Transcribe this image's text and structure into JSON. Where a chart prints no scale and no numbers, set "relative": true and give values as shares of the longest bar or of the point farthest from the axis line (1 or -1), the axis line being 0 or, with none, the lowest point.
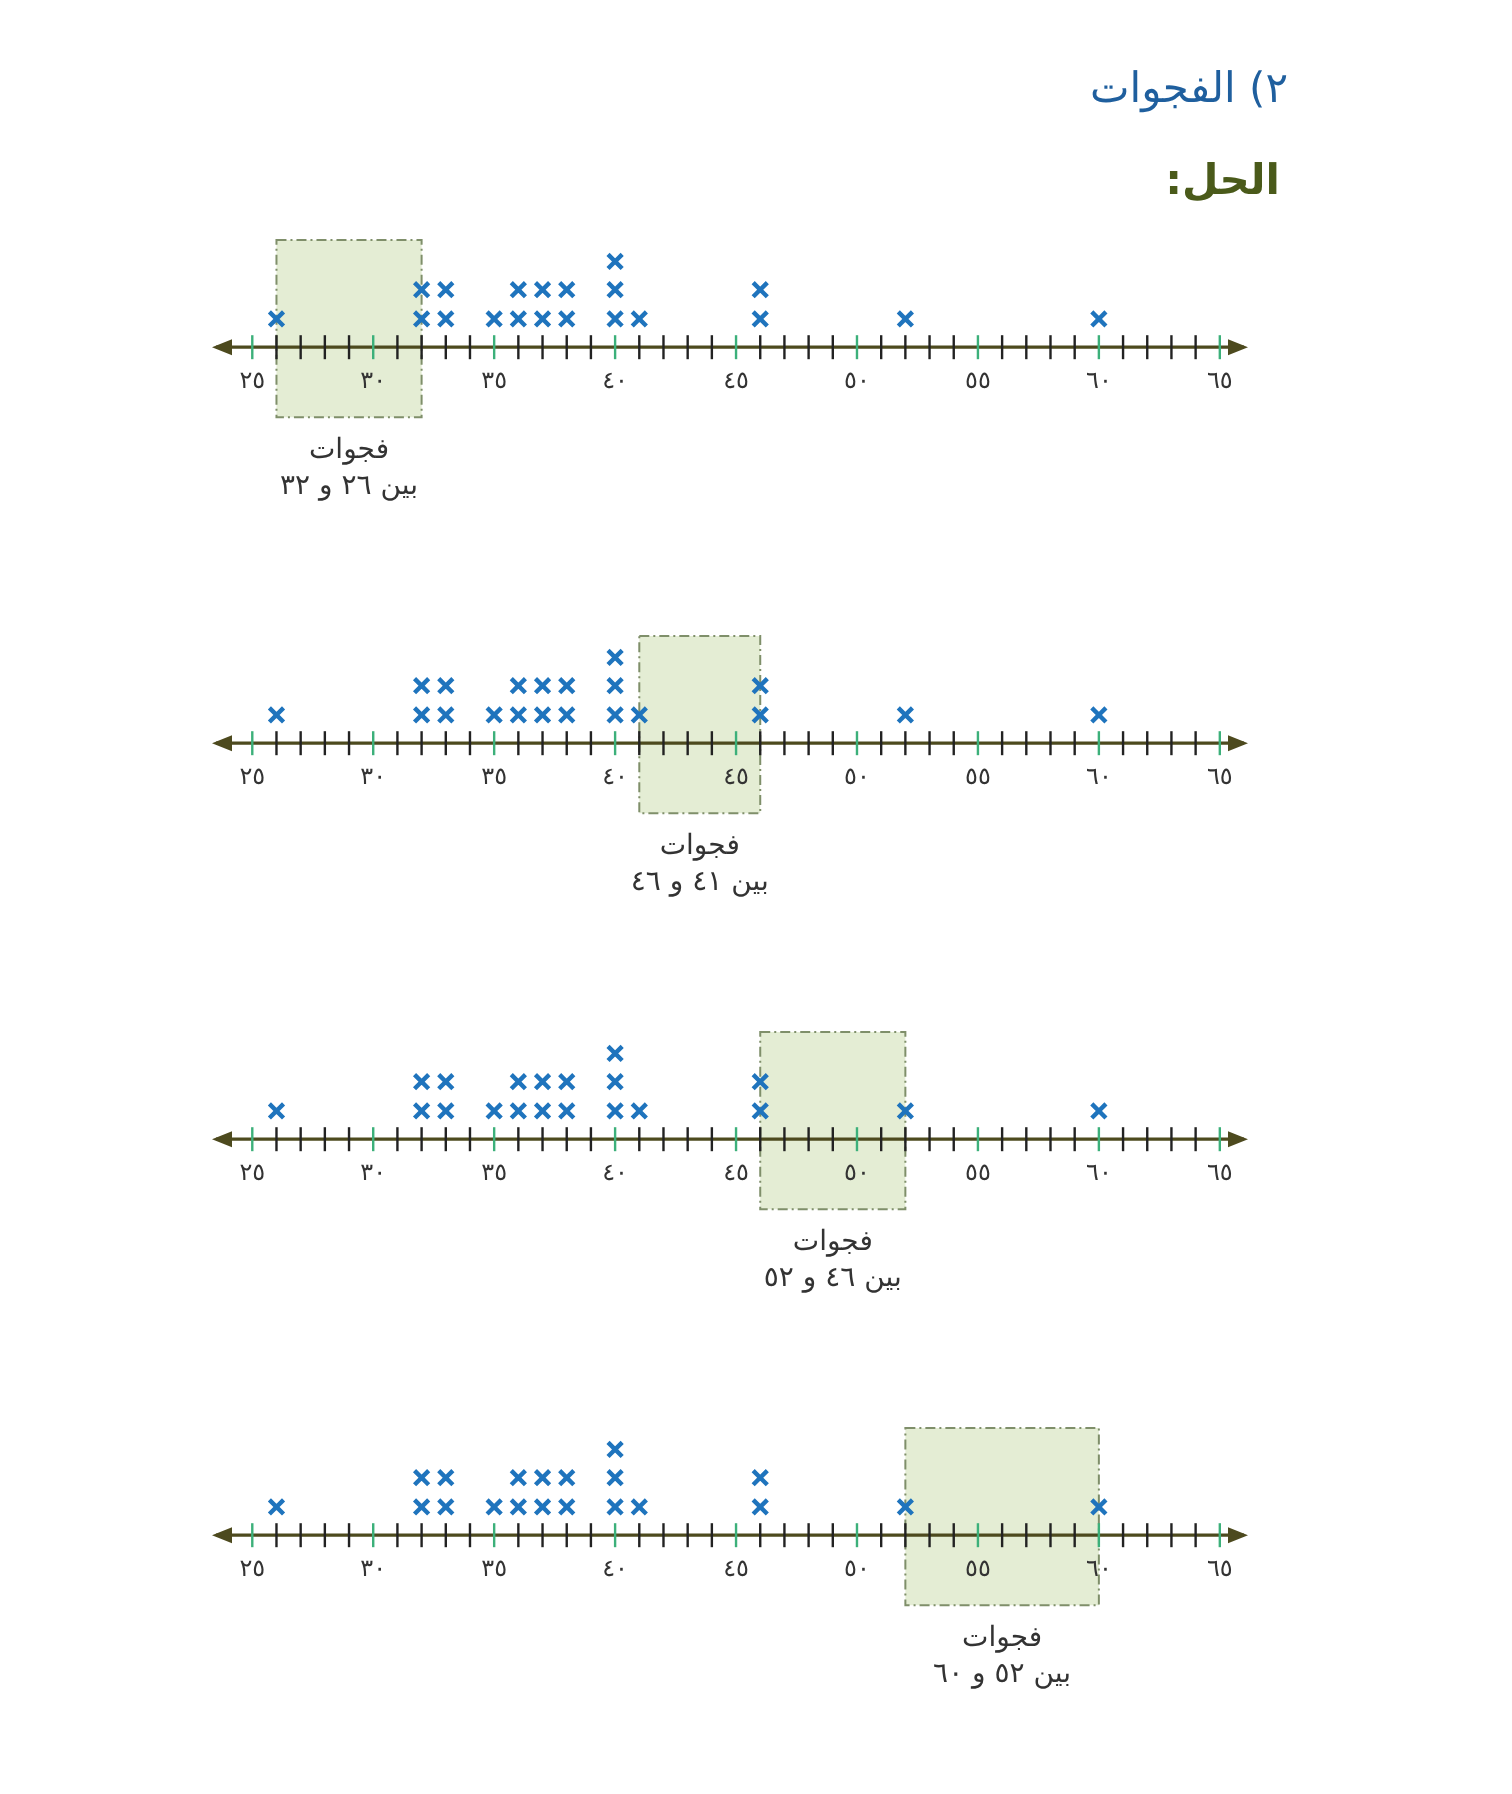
{
  "chart_data": [
    {
      "type": "scatter",
      "title": "٢) الفجوات",
      "subtitle": "الحل:",
      "relative": true,
      "marker": "cross",
      "series": [
        {
          "color": "#1f74bd",
          "x": [
            26,
            32,
            32,
            33,
            33,
            35,
            36,
            36,
            37,
            37,
            38,
            38,
            40,
            40,
            40,
            41,
            46,
            46,
            52,
            60
          ],
          "values": [
            0.33,
            0.33,
            0.67,
            0.33,
            0.67,
            0.33,
            0.33,
            0.67,
            0.33,
            0.67,
            0.33,
            0.67,
            0.33,
            0.67,
            1,
            0.33,
            0.33,
            0.67,
            0.33,
            0.33
          ]
        }
      ],
      "xlim": [
        23.5,
        66
      ],
      "xticks": [
        {
          "value": 25,
          "label": "٢٥"
        },
        {
          "value": 26,
          "label": null
        },
        {
          "value": 27,
          "label": null
        },
        {
          "value": 28,
          "label": null
        },
        {
          "value": 29,
          "label": null
        },
        {
          "value": 30,
          "label": "٣٠"
        },
        {
          "value": 31,
          "label": null
        },
        {
          "value": 32,
          "label": null
        },
        {
          "value": 33,
          "label": null
        },
        {
          "value": 34,
          "label": null
        },
        {
          "value": 35,
          "label": "٣٥"
        },
        {
          "value": 36,
          "label": null
        },
        {
          "value": 37,
          "label": null
        },
        {
          "value": 38,
          "label": null
        },
        {
          "value": 39,
          "label": null
        },
        {
          "value": 40,
          "label": "٤٠"
        },
        {
          "value": 41,
          "label": null
        },
        {
          "value": 42,
          "label": null
        },
        {
          "value": 43,
          "label": null
        },
        {
          "value": 44,
          "label": null
        },
        {
          "value": 45,
          "label": "٤٥"
        },
        {
          "value": 46,
          "label": null
        },
        {
          "value": 47,
          "label": null
        },
        {
          "value": 48,
          "label": null
        },
        {
          "value": 49,
          "label": null
        },
        {
          "value": 50,
          "label": "٥٠"
        },
        {
          "value": 51,
          "label": null
        },
        {
          "value": 52,
          "label": null
        },
        {
          "value": 53,
          "label": null
        },
        {
          "value": 54,
          "label": null
        },
        {
          "value": 55,
          "label": "٥٥"
        },
        {
          "value": 56,
          "label": null
        },
        {
          "value": 57,
          "label": null
        },
        {
          "value": 58,
          "label": null
        },
        {
          "value": 59,
          "label": null
        },
        {
          "value": 60,
          "label": "٦٠"
        },
        {
          "value": 61,
          "label": null
        },
        {
          "value": 62,
          "label": null
        },
        {
          "value": 63,
          "label": null
        },
        {
          "value": 64,
          "label": null
        },
        {
          "value": 65,
          "label": "٦٥"
        }
      ],
      "bands": [
        {
          "axis": "x",
          "from": 26,
          "to": 32,
          "label": "فجوات\nبين ٢٦ و ٣٢",
          "color": "#e4edd4"
        }
      ]
    },
    {
      "type": "scatter",
      "relative": true,
      "marker": "cross",
      "series": [
        {
          "color": "#1f74bd",
          "x": [
            26,
            32,
            32,
            33,
            33,
            35,
            36,
            36,
            37,
            37,
            38,
            38,
            40,
            40,
            40,
            41,
            46,
            46,
            52,
            60
          ],
          "values": [
            0.33,
            0.33,
            0.67,
            0.33,
            0.67,
            0.33,
            0.33,
            0.67,
            0.33,
            0.67,
            0.33,
            0.67,
            0.33,
            0.67,
            1,
            0.33,
            0.33,
            0.67,
            0.33,
            0.33
          ]
        }
      ],
      "xlim": [
        23.5,
        66
      ],
      "xticks": [
        {
          "value": 25,
          "label": "٢٥"
        },
        {
          "value": 26,
          "label": null
        },
        {
          "value": 27,
          "label": null
        },
        {
          "value": 28,
          "label": null
        },
        {
          "value": 29,
          "label": null
        },
        {
          "value": 30,
          "label": "٣٠"
        },
        {
          "value": 31,
          "label": null
        },
        {
          "value": 32,
          "label": null
        },
        {
          "value": 33,
          "label": null
        },
        {
          "value": 34,
          "label": null
        },
        {
          "value": 35,
          "label": "٣٥"
        },
        {
          "value": 36,
          "label": null
        },
        {
          "value": 37,
          "label": null
        },
        {
          "value": 38,
          "label": null
        },
        {
          "value": 39,
          "label": null
        },
        {
          "value": 40,
          "label": "٤٠"
        },
        {
          "value": 41,
          "label": null
        },
        {
          "value": 42,
          "label": null
        },
        {
          "value": 43,
          "label": null
        },
        {
          "value": 44,
          "label": null
        },
        {
          "value": 45,
          "label": "٤٥"
        },
        {
          "value": 46,
          "label": null
        },
        {
          "value": 47,
          "label": null
        },
        {
          "value": 48,
          "label": null
        },
        {
          "value": 49,
          "label": null
        },
        {
          "value": 50,
          "label": "٥٠"
        },
        {
          "value": 51,
          "label": null
        },
        {
          "value": 52,
          "label": null
        },
        {
          "value": 53,
          "label": null
        },
        {
          "value": 54,
          "label": null
        },
        {
          "value": 55,
          "label": "٥٥"
        },
        {
          "value": 56,
          "label": null
        },
        {
          "value": 57,
          "label": null
        },
        {
          "value": 58,
          "label": null
        },
        {
          "value": 59,
          "label": null
        },
        {
          "value": 60,
          "label": "٦٠"
        },
        {
          "value": 61,
          "label": null
        },
        {
          "value": 62,
          "label": null
        },
        {
          "value": 63,
          "label": null
        },
        {
          "value": 64,
          "label": null
        },
        {
          "value": 65,
          "label": "٦٥"
        }
      ],
      "bands": [
        {
          "axis": "x",
          "from": 41,
          "to": 46,
          "label": "فجوات\nبين ٤١ و ٤٦",
          "color": "#e4edd4"
        }
      ]
    },
    {
      "type": "scatter",
      "relative": true,
      "marker": "cross",
      "series": [
        {
          "color": "#1f74bd",
          "x": [
            26,
            32,
            32,
            33,
            33,
            35,
            36,
            36,
            37,
            37,
            38,
            38,
            40,
            40,
            40,
            41,
            46,
            46,
            52,
            60
          ],
          "values": [
            0.33,
            0.33,
            0.67,
            0.33,
            0.67,
            0.33,
            0.33,
            0.67,
            0.33,
            0.67,
            0.33,
            0.67,
            0.33,
            0.67,
            1,
            0.33,
            0.33,
            0.67,
            0.33,
            0.33
          ]
        }
      ],
      "xlim": [
        23.5,
        66
      ],
      "xticks": [
        {
          "value": 25,
          "label": "٢٥"
        },
        {
          "value": 26,
          "label": null
        },
        {
          "value": 27,
          "label": null
        },
        {
          "value": 28,
          "label": null
        },
        {
          "value": 29,
          "label": null
        },
        {
          "value": 30,
          "label": "٣٠"
        },
        {
          "value": 31,
          "label": null
        },
        {
          "value": 32,
          "label": null
        },
        {
          "value": 33,
          "label": null
        },
        {
          "value": 34,
          "label": null
        },
        {
          "value": 35,
          "label": "٣٥"
        },
        {
          "value": 36,
          "label": null
        },
        {
          "value": 37,
          "label": null
        },
        {
          "value": 38,
          "label": null
        },
        {
          "value": 39,
          "label": null
        },
        {
          "value": 40,
          "label": "٤٠"
        },
        {
          "value": 41,
          "label": null
        },
        {
          "value": 42,
          "label": null
        },
        {
          "value": 43,
          "label": null
        },
        {
          "value": 44,
          "label": null
        },
        {
          "value": 45,
          "label": "٤٥"
        },
        {
          "value": 46,
          "label": null
        },
        {
          "value": 47,
          "label": null
        },
        {
          "value": 48,
          "label": null
        },
        {
          "value": 49,
          "label": null
        },
        {
          "value": 50,
          "label": "٥٠"
        },
        {
          "value": 51,
          "label": null
        },
        {
          "value": 52,
          "label": null
        },
        {
          "value": 53,
          "label": null
        },
        {
          "value": 54,
          "label": null
        },
        {
          "value": 55,
          "label": "٥٥"
        },
        {
          "value": 56,
          "label": null
        },
        {
          "value": 57,
          "label": null
        },
        {
          "value": 58,
          "label": null
        },
        {
          "value": 59,
          "label": null
        },
        {
          "value": 60,
          "label": "٦٠"
        },
        {
          "value": 61,
          "label": null
        },
        {
          "value": 62,
          "label": null
        },
        {
          "value": 63,
          "label": null
        },
        {
          "value": 64,
          "label": null
        },
        {
          "value": 65,
          "label": "٦٥"
        }
      ],
      "bands": [
        {
          "axis": "x",
          "from": 46,
          "to": 52,
          "label": "فجوات\nبين ٤٦ و ٥٢",
          "color": "#e4edd4"
        }
      ]
    },
    {
      "type": "scatter",
      "relative": true,
      "marker": "cross",
      "series": [
        {
          "color": "#1f74bd",
          "x": [
            26,
            32,
            32,
            33,
            33,
            35,
            36,
            36,
            37,
            37,
            38,
            38,
            40,
            40,
            40,
            41,
            46,
            46,
            52,
            60
          ],
          "values": [
            0.33,
            0.33,
            0.67,
            0.33,
            0.67,
            0.33,
            0.33,
            0.67,
            0.33,
            0.67,
            0.33,
            0.67,
            0.33,
            0.67,
            1,
            0.33,
            0.33,
            0.67,
            0.33,
            0.33
          ]
        }
      ],
      "xlim": [
        23.5,
        66
      ],
      "xticks": [
        {
          "value": 25,
          "label": "٢٥"
        },
        {
          "value": 26,
          "label": null
        },
        {
          "value": 27,
          "label": null
        },
        {
          "value": 28,
          "label": null
        },
        {
          "value": 29,
          "label": null
        },
        {
          "value": 30,
          "label": "٣٠"
        },
        {
          "value": 31,
          "label": null
        },
        {
          "value": 32,
          "label": null
        },
        {
          "value": 33,
          "label": null
        },
        {
          "value": 34,
          "label": null
        },
        {
          "value": 35,
          "label": "٣٥"
        },
        {
          "value": 36,
          "label": null
        },
        {
          "value": 37,
          "label": null
        },
        {
          "value": 38,
          "label": null
        },
        {
          "value": 39,
          "label": null
        },
        {
          "value": 40,
          "label": "٤٠"
        },
        {
          "value": 41,
          "label": null
        },
        {
          "value": 42,
          "label": null
        },
        {
          "value": 43,
          "label": null
        },
        {
          "value": 44,
          "label": null
        },
        {
          "value": 45,
          "label": "٤٥"
        },
        {
          "value": 46,
          "label": null
        },
        {
          "value": 47,
          "label": null
        },
        {
          "value": 48,
          "label": null
        },
        {
          "value": 49,
          "label": null
        },
        {
          "value": 50,
          "label": "٥٠"
        },
        {
          "value": 51,
          "label": null
        },
        {
          "value": 52,
          "label": null
        },
        {
          "value": 53,
          "label": null
        },
        {
          "value": 54,
          "label": null
        },
        {
          "value": 55,
          "label": "٥٥"
        },
        {
          "value": 56,
          "label": null
        },
        {
          "value": 57,
          "label": null
        },
        {
          "value": 58,
          "label": null
        },
        {
          "value": 59,
          "label": null
        },
        {
          "value": 60,
          "label": "٦٠"
        },
        {
          "value": 61,
          "label": null
        },
        {
          "value": 62,
          "label": null
        },
        {
          "value": 63,
          "label": null
        },
        {
          "value": 64,
          "label": null
        },
        {
          "value": 65,
          "label": "٦٥"
        }
      ],
      "bands": [
        {
          "axis": "x",
          "from": 52,
          "to": 60,
          "label": "فجوات\nبين ٥٢ و ٦٠",
          "color": "#e4edd4"
        }
      ]
    }
  ]
}
